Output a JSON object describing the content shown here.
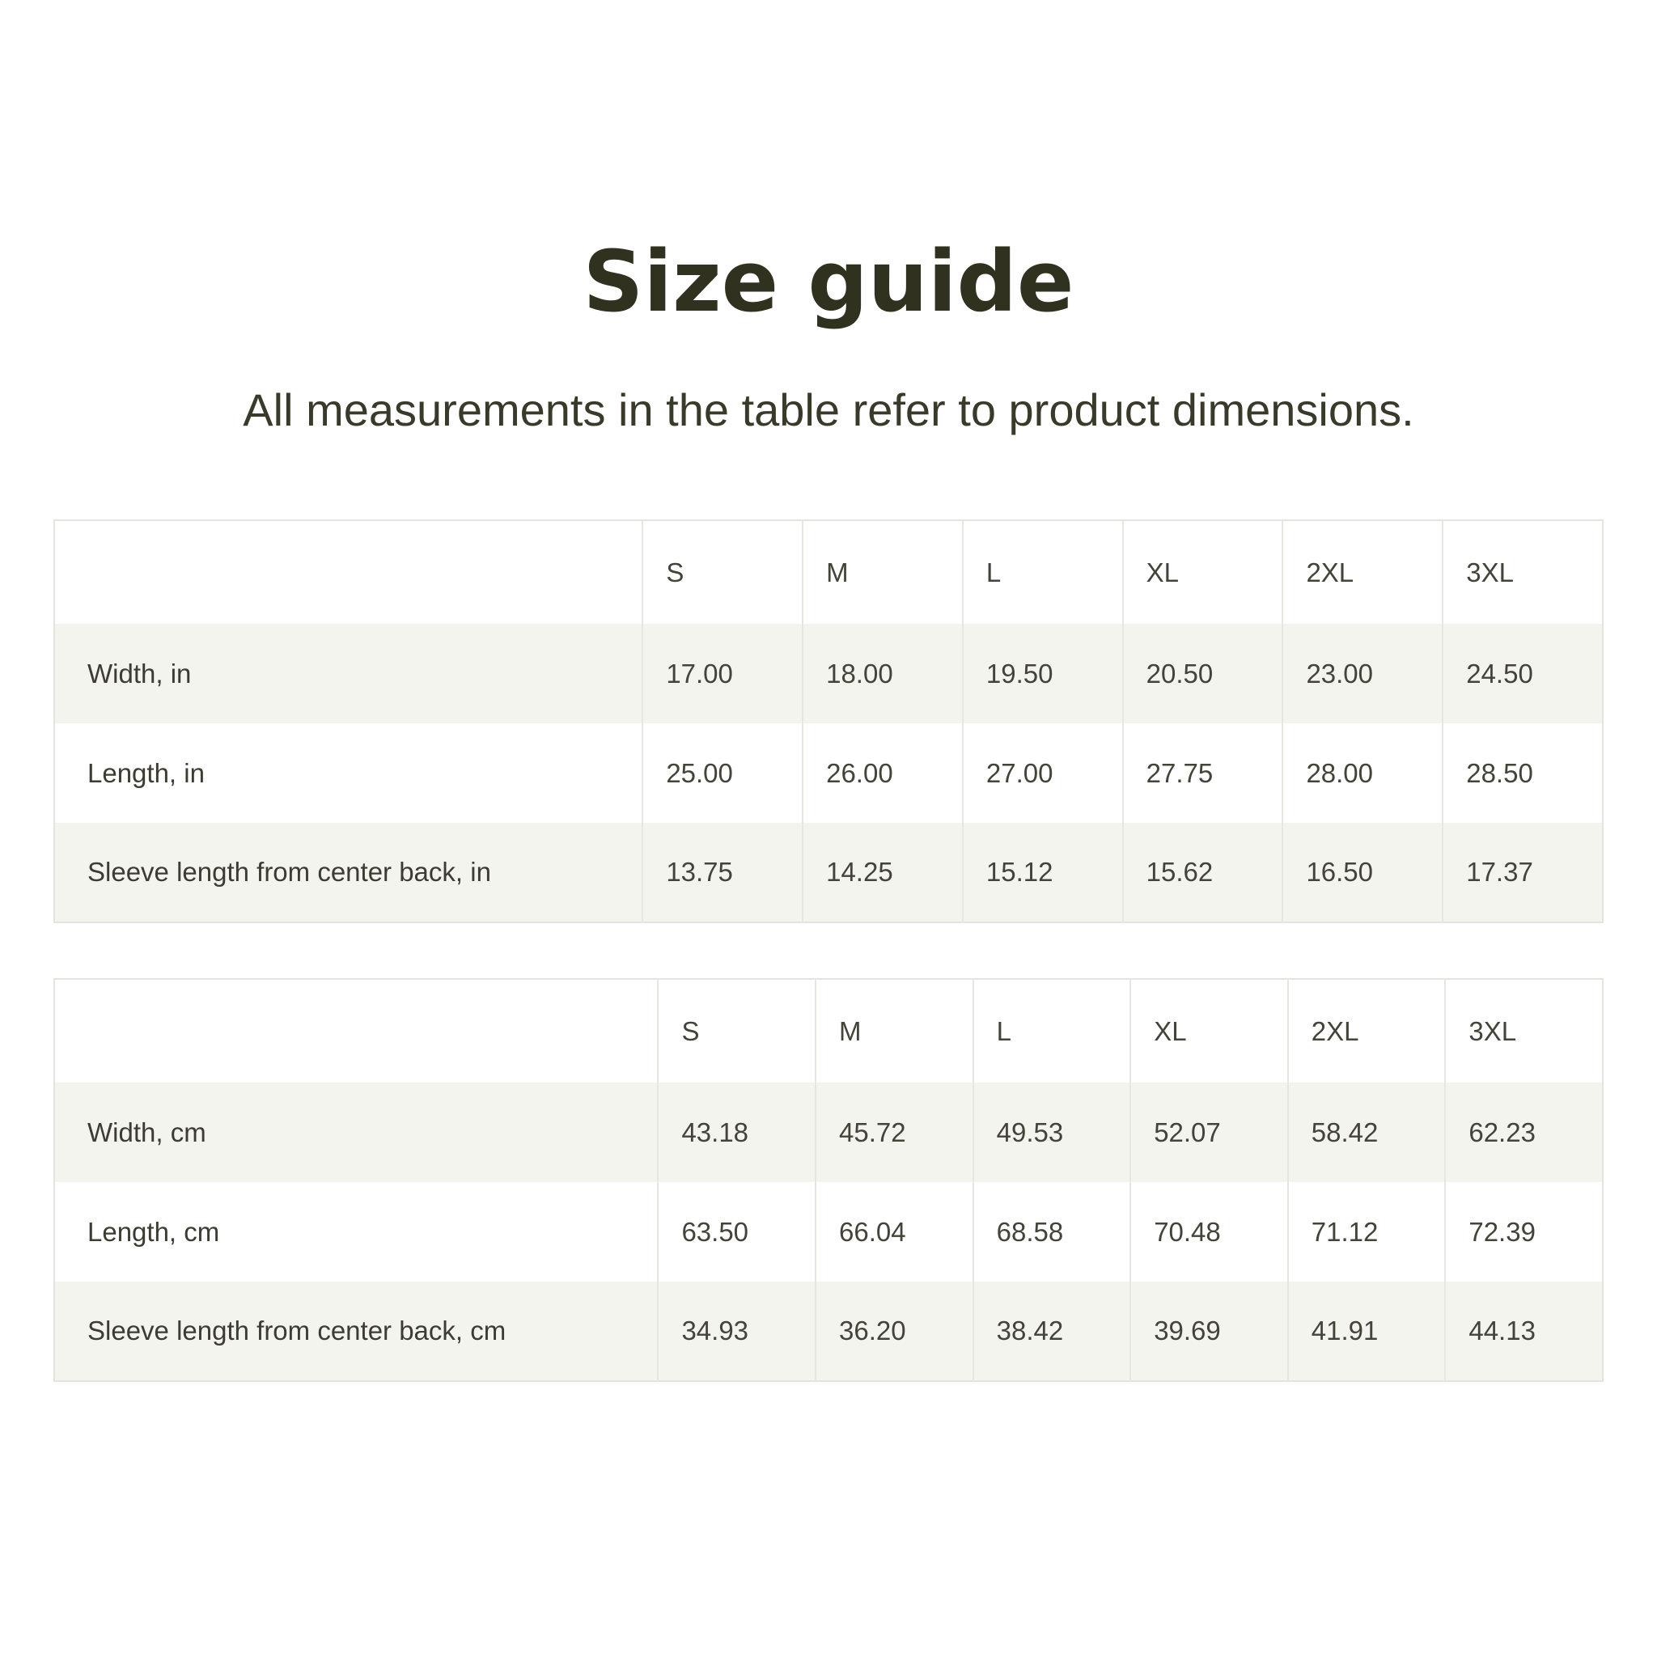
{
  "page": {
    "title": "Size guide",
    "subtitle": "All measurements in the table refer to product dimensions."
  },
  "colors": {
    "title_text": "#31311f",
    "subtitle_text": "#3a3a2b",
    "table_text": "#43433a",
    "row_stripe": "#f4f4ef",
    "table_border": "#e4e4de",
    "column_divider": "#e7e7e1",
    "background": "#ffffff"
  },
  "size_tables": [
    {
      "name": "inches",
      "column_headers": [
        "S",
        "M",
        "L",
        "XL",
        "2XL",
        "3XL"
      ],
      "rows": [
        {
          "label": "Width, in",
          "values": [
            "17.00",
            "18.00",
            "19.50",
            "20.50",
            "23.00",
            "24.50"
          ]
        },
        {
          "label": "Length, in",
          "values": [
            "25.00",
            "26.00",
            "27.00",
            "27.75",
            "28.00",
            "28.50"
          ]
        },
        {
          "label": "Sleeve length from center back, in",
          "values": [
            "13.75",
            "14.25",
            "15.12",
            "15.62",
            "16.50",
            "17.37"
          ]
        }
      ]
    },
    {
      "name": "centimeters",
      "column_headers": [
        "S",
        "M",
        "L",
        "XL",
        "2XL",
        "3XL"
      ],
      "rows": [
        {
          "label": "Width, cm",
          "values": [
            "43.18",
            "45.72",
            "49.53",
            "52.07",
            "58.42",
            "62.23"
          ]
        },
        {
          "label": "Length, cm",
          "values": [
            "63.50",
            "66.04",
            "68.58",
            "70.48",
            "71.12",
            "72.39"
          ]
        },
        {
          "label": "Sleeve length from center back, cm",
          "values": [
            "34.93",
            "36.20",
            "38.42",
            "39.69",
            "41.91",
            "44.13"
          ]
        }
      ]
    }
  ]
}
